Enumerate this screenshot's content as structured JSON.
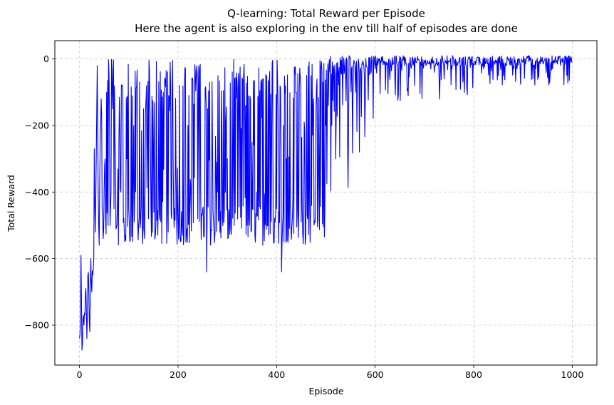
{
  "chart_data": {
    "type": "line",
    "title": "Q-learning: Total Reward per Episode",
    "subtitle": "Here the agent is also exploring in the env till half of episodes are done",
    "xlabel": "Episode",
    "ylabel": "Total Reward",
    "xlim": [
      -50,
      1050
    ],
    "ylim": [
      -920,
      55
    ],
    "xticks": [
      0,
      200,
      400,
      600,
      800,
      1000
    ],
    "yticks": [
      -800,
      -600,
      -400,
      -200,
      0
    ],
    "xtick_labels": [
      "0",
      "200",
      "400",
      "600",
      "800",
      "1000"
    ],
    "ytick_labels": [
      "−800",
      "−600",
      "−400",
      "−200",
      "0"
    ],
    "grid": true,
    "grid_style": "dashed",
    "line_color": "#0000ff",
    "n_episodes": 1000,
    "series": [
      {
        "x": [
          0,
          2,
          3,
          5,
          7,
          9,
          11,
          13,
          15,
          17,
          19,
          21,
          23,
          25,
          27,
          29,
          30,
          32,
          34,
          36,
          38,
          40,
          42,
          44,
          46,
          48,
          50,
          52,
          55,
          58,
          61,
          64,
          67,
          70,
          73,
          76,
          80,
          84,
          88,
          92,
          96,
          100,
          110,
          120,
          130,
          140,
          150,
          160,
          170,
          180,
          190,
          200,
          220,
          240,
          258,
          260,
          280,
          300,
          320,
          340,
          350,
          360,
          380,
          400,
          410,
          414,
          420,
          440,
          460,
          480,
          500,
          520,
          540,
          560,
          580,
          600,
          620,
          640,
          660,
          680,
          700,
          720,
          740,
          760,
          780,
          800,
          820,
          840,
          860,
          880,
          900,
          920,
          940,
          960,
          980,
          1000
        ],
        "y": [
          -840,
          -780,
          -590,
          -875,
          -780,
          -800,
          -770,
          -690,
          -840,
          -650,
          -700,
          -820,
          -600,
          -700,
          -650,
          -600,
          -270,
          -520,
          -300,
          -20,
          -400,
          -560,
          -250,
          -120,
          -450,
          -540,
          -400,
          -300,
          -100,
          -500,
          -200,
          -400,
          -150,
          -450,
          -300,
          -500,
          -250,
          -400,
          -100,
          -550,
          -300,
          -450,
          -200,
          -500,
          -150,
          -480,
          -250,
          -400,
          -100,
          -520,
          -300,
          -450,
          -200,
          -480,
          -640,
          -150,
          -400,
          -300,
          -100,
          -500,
          -250,
          -400,
          -50,
          -450,
          -640,
          -200,
          -300,
          -100,
          -400,
          -150,
          -200,
          -300,
          -50,
          -100,
          -120,
          -30,
          -10,
          -60,
          -20,
          -80,
          -5,
          -40,
          -60,
          -20,
          -50,
          -20,
          -30,
          -10,
          -50,
          -20,
          -10,
          -60,
          -10,
          -30,
          -10,
          -10
        ]
      }
    ]
  }
}
